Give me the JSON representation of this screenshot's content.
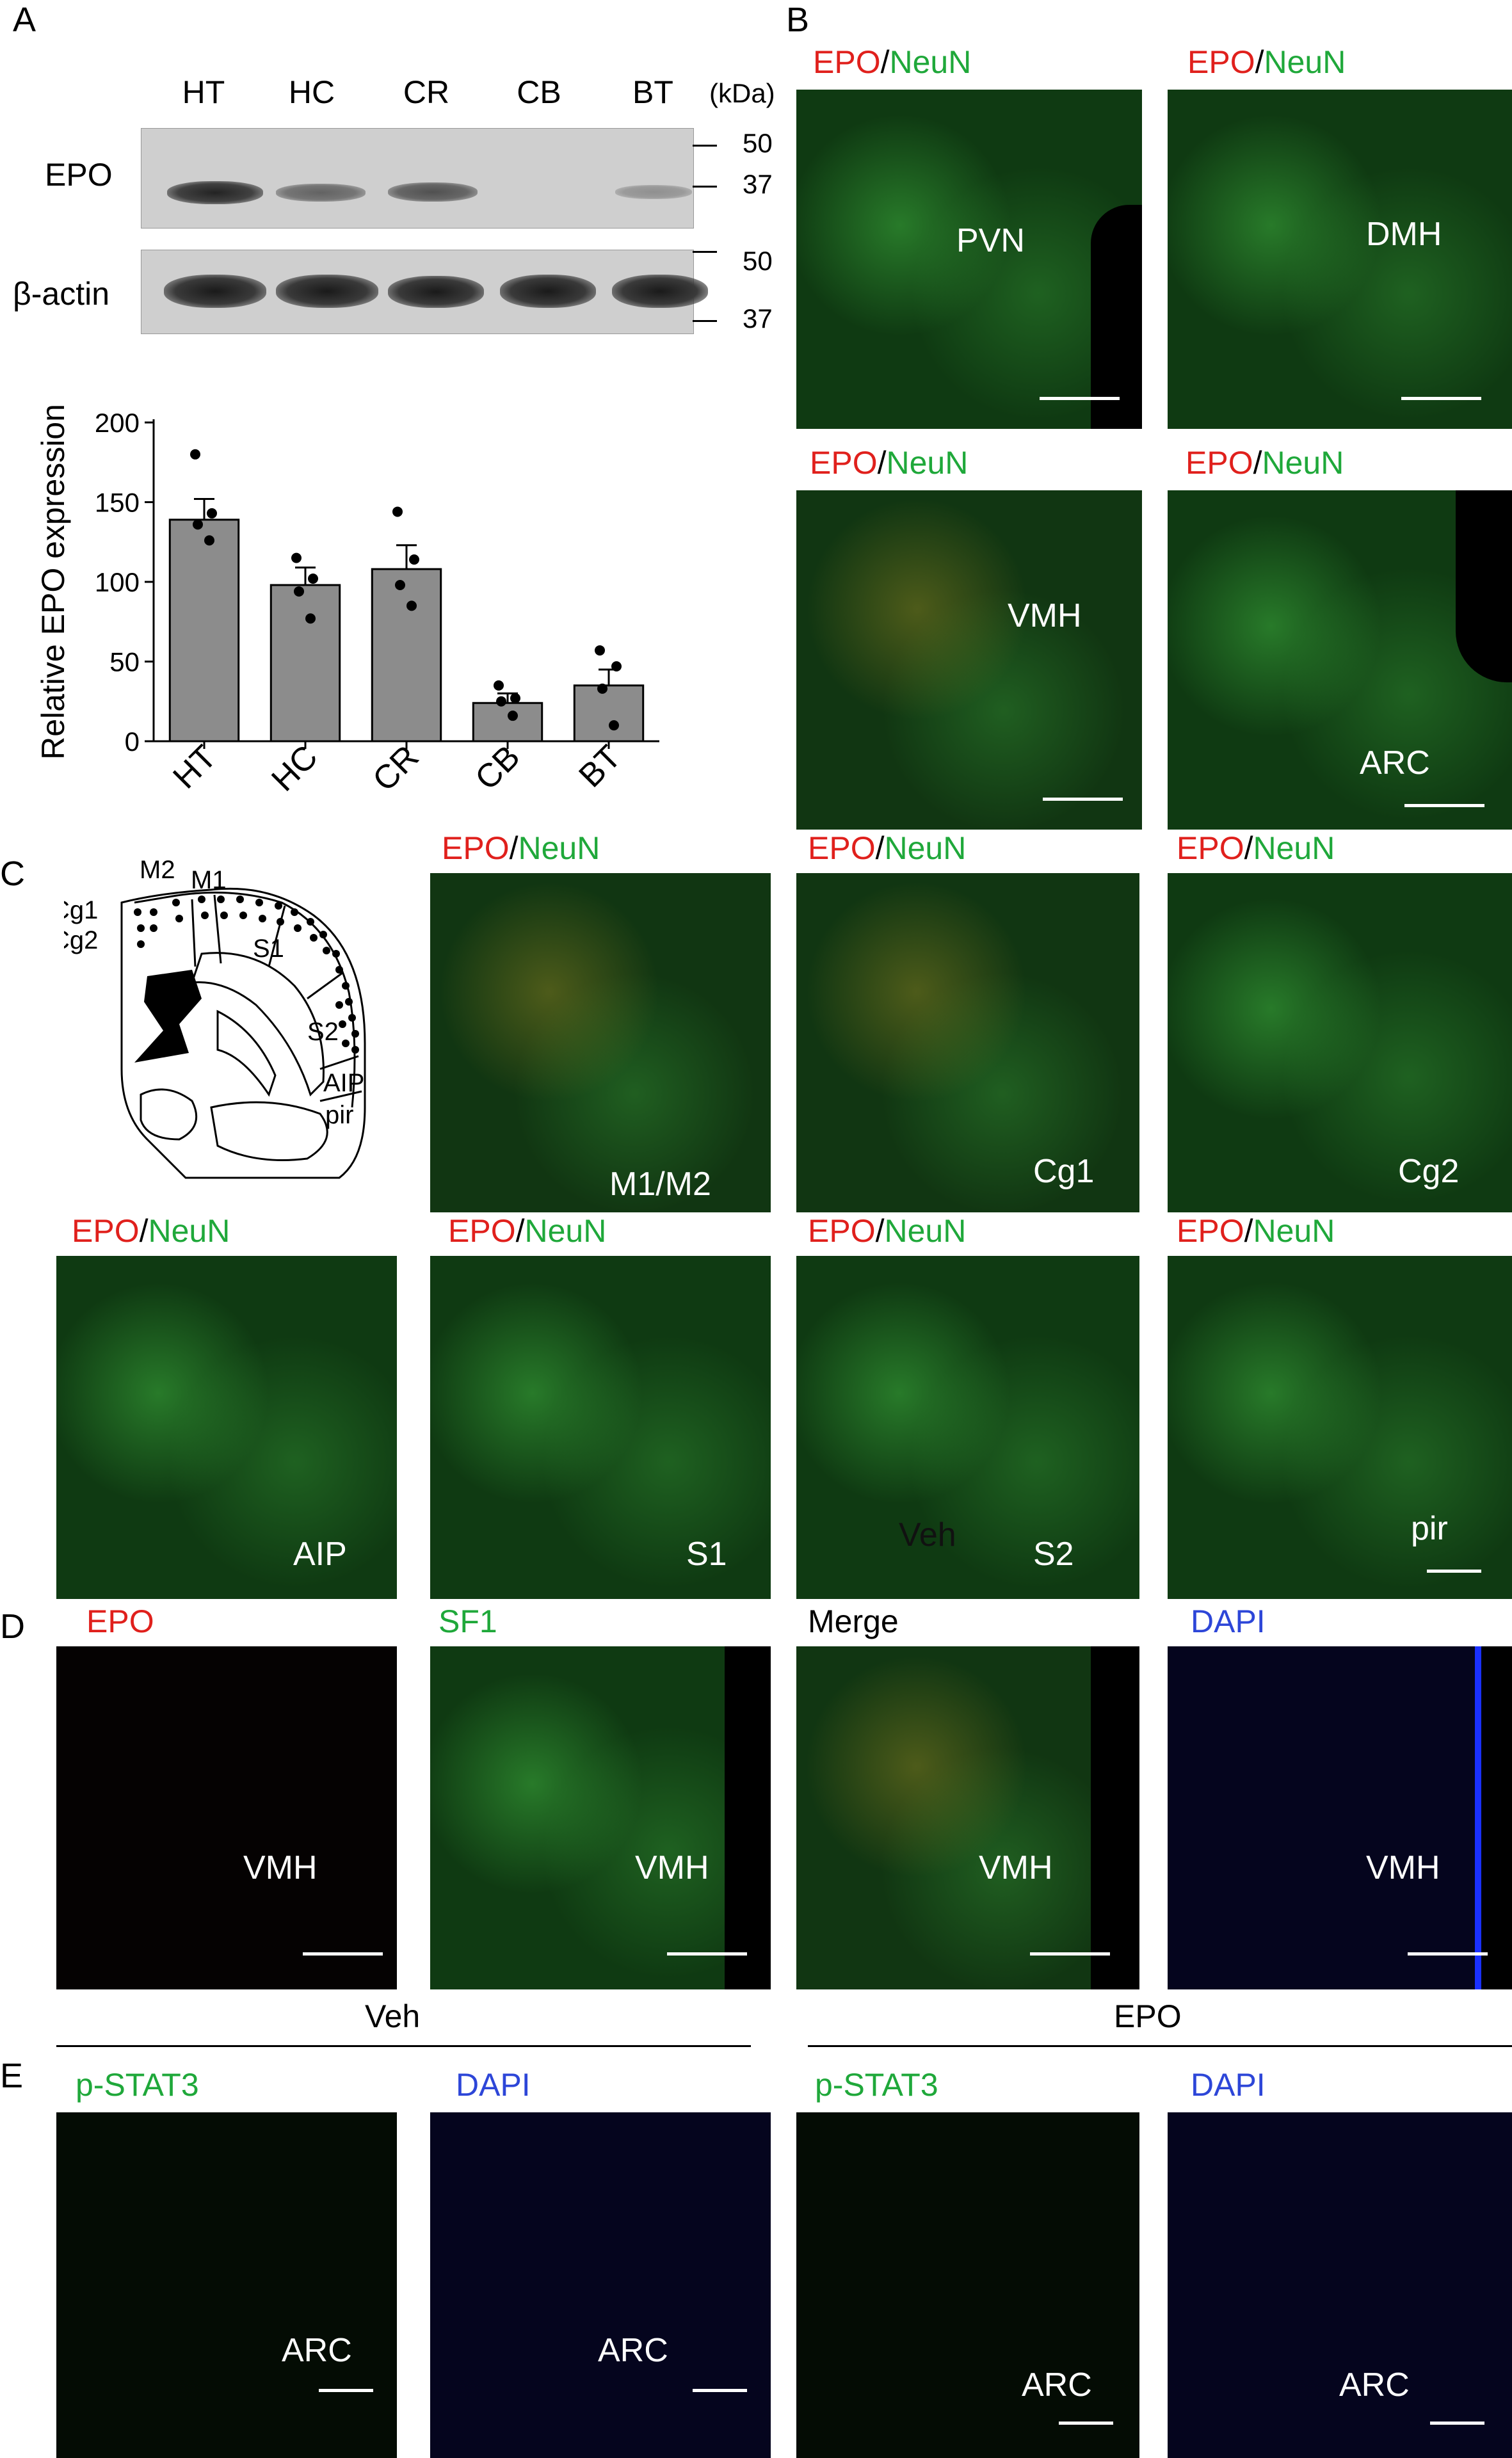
{
  "panel_labels": {
    "A": "A",
    "B": "B",
    "C": "C",
    "D": "D",
    "E": "E"
  },
  "western": {
    "lanes": [
      "HT",
      "HC",
      "CR",
      "CB",
      "BT"
    ],
    "unit": "(kDa)",
    "rows": [
      {
        "name": "EPO",
        "markers": [
          "50",
          "37"
        ],
        "intensity": [
          0.9,
          0.55,
          0.65,
          0.0,
          0.3
        ]
      },
      {
        "name": "β-actin",
        "markers": [
          "50",
          "37"
        ],
        "intensity": [
          0.95,
          0.95,
          0.9,
          0.9,
          0.95
        ]
      }
    ]
  },
  "chart_data": {
    "type": "bar",
    "categories": [
      "HT",
      "HC",
      "CR",
      "CB",
      "BT"
    ],
    "values": [
      139,
      98,
      108,
      24,
      35
    ],
    "errors": [
      13,
      11,
      15,
      6,
      10
    ],
    "points": [
      [
        180,
        143,
        136,
        126
      ],
      [
        115,
        102,
        94,
        77
      ],
      [
        144,
        114,
        98,
        85
      ],
      [
        35,
        27,
        25,
        16
      ],
      [
        57,
        47,
        33,
        10
      ]
    ],
    "ylabel": "Relative EPO expression",
    "xlabel": "",
    "ylim": [
      0,
      200
    ],
    "yticks": [
      0,
      50,
      100,
      150,
      200
    ],
    "bar_color": "#8c8c8c",
    "grid": false
  },
  "title_parts": {
    "epo": "EPO",
    "slash": "/",
    "neun": "NeuN",
    "sf1": "SF1",
    "merge": "Merge",
    "dapi": "DAPI",
    "pstat3": "p-STAT3"
  },
  "panelB": [
    {
      "region": "PVN"
    },
    {
      "region": "DMH"
    },
    {
      "region": "VMH"
    },
    {
      "region": "ARC"
    }
  ],
  "panelC_schematic": [
    "M2",
    "M1",
    "Cg1",
    "Cg2",
    "S1",
    "S2",
    "AIP",
    "pir"
  ],
  "panelC": [
    {
      "region": "M1/M2"
    },
    {
      "region": "Cg1"
    },
    {
      "region": "Cg2"
    },
    {
      "region": "AIP"
    },
    {
      "region": "S1"
    },
    {
      "region": "S2"
    },
    {
      "region": "pir"
    }
  ],
  "panelC_extra_label": "Veh",
  "panelD": {
    "region": "VMH"
  },
  "panelE": {
    "group1": "Veh",
    "group2": "EPO",
    "region": "ARC"
  },
  "colors": {
    "red": "#e0201c",
    "green": "#1fa83a",
    "blue": "#2d46d8"
  }
}
